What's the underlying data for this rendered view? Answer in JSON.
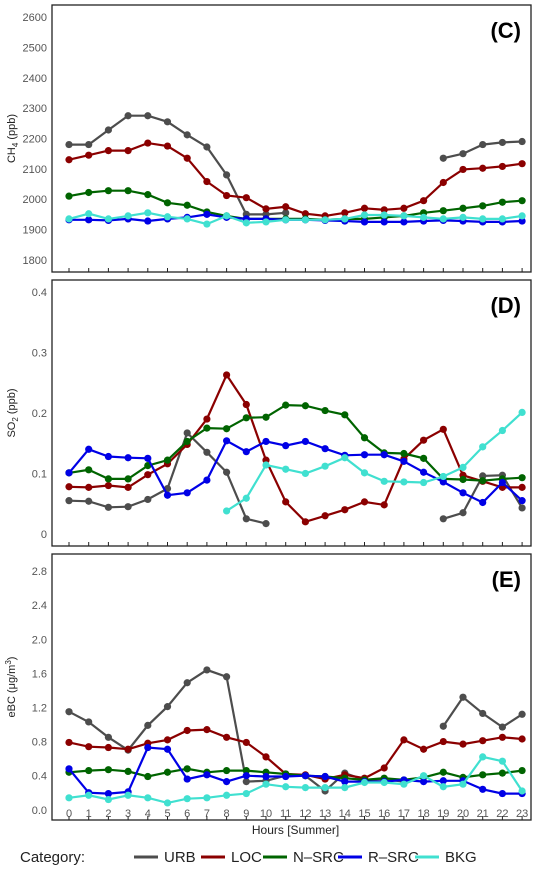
{
  "chart_data": [
    {
      "type": "line",
      "panel_label": "(C)",
      "ylabel": "CH4 (ppb)",
      "ylabel_main": "CH",
      "ylabel_sub": "4",
      "ylabel_rest": " (ppb)",
      "ylim": [
        1760,
        2640
      ],
      "yticks": [
        1800,
        1900,
        2000,
        2100,
        2200,
        2300,
        2400,
        2500,
        2600
      ],
      "x": [
        0,
        1,
        2,
        3,
        4,
        5,
        6,
        7,
        8,
        9,
        10,
        11,
        12,
        13,
        14,
        15,
        16,
        17,
        18,
        19,
        20,
        21,
        22,
        23
      ],
      "series": [
        {
          "name": "URB",
          "values": [
            2180,
            2180,
            2228,
            2275,
            2275,
            2255,
            2212,
            2172,
            2080,
            1950,
            1950,
            1955,
            null,
            null,
            null,
            null,
            null,
            null,
            null,
            2135,
            2150,
            2180,
            2187,
            2190
          ]
        },
        {
          "name": "LOC",
          "values": [
            2130,
            2145,
            2160,
            2160,
            2185,
            2175,
            2135,
            2058,
            2012,
            2005,
            1968,
            1975,
            1952,
            1945,
            1955,
            1970,
            1965,
            1970,
            1995,
            2055,
            2098,
            2102,
            2108,
            2117
          ]
        },
        {
          "name": "N–SRC",
          "values": [
            2010,
            2022,
            2028,
            2028,
            2015,
            1988,
            1980,
            1958,
            1945,
            1935,
            1935,
            1935,
            1935,
            1932,
            1935,
            1935,
            1940,
            1945,
            1955,
            1962,
            1970,
            1978,
            1990,
            1995
          ]
        },
        {
          "name": "R–SRC",
          "values": [
            1932,
            1932,
            1930,
            1935,
            1928,
            1935,
            1940,
            1950,
            1940,
            1935,
            1935,
            1932,
            1932,
            1930,
            1928,
            1925,
            1925,
            1925,
            1928,
            1930,
            1928,
            1925,
            1925,
            1928
          ]
        },
        {
          "name": "BKG",
          "values": [
            1935,
            1952,
            1935,
            1945,
            1955,
            1942,
            1935,
            1918,
            1945,
            1922,
            1925,
            1932,
            1932,
            1932,
            1935,
            1948,
            1948,
            1945,
            1940,
            1935,
            1940,
            1935,
            1935,
            1945
          ]
        }
      ]
    },
    {
      "type": "line",
      "panel_label": "(D)",
      "ylabel": "SO2 (ppb)",
      "ylabel_main": "SO",
      "ylabel_sub": "2",
      "ylabel_rest": " (ppb)",
      "ylim": [
        -0.02,
        0.42
      ],
      "yticks": [
        0.0,
        0.1,
        0.2,
        0.3,
        0.4
      ],
      "x": [
        0,
        1,
        2,
        3,
        4,
        5,
        6,
        7,
        8,
        9,
        10,
        11,
        12,
        13,
        14,
        15,
        16,
        17,
        18,
        19,
        20,
        21,
        22,
        23
      ],
      "series": [
        {
          "name": "URB",
          "values": [
            0.055,
            0.054,
            0.044,
            0.045,
            0.057,
            0.075,
            0.167,
            0.135,
            0.102,
            0.025,
            0.017,
            null,
            null,
            null,
            null,
            null,
            null,
            null,
            null,
            0.025,
            0.035,
            0.096,
            0.097,
            0.043
          ]
        },
        {
          "name": "LOC",
          "values": [
            0.078,
            0.077,
            0.08,
            0.077,
            0.098,
            0.116,
            0.148,
            0.19,
            0.263,
            0.214,
            0.122,
            0.053,
            0.02,
            0.03,
            0.04,
            0.053,
            0.048,
            0.124,
            0.155,
            0.173,
            0.097,
            0.087,
            0.077,
            0.077
          ]
        },
        {
          "name": "N–SRC",
          "values": [
            0.101,
            0.106,
            0.091,
            0.091,
            0.113,
            0.122,
            0.153,
            0.175,
            0.174,
            0.192,
            0.193,
            0.213,
            0.212,
            0.204,
            0.197,
            0.159,
            0.134,
            0.133,
            0.125,
            0.091,
            0.09,
            0.088,
            0.091,
            0.093
          ]
        },
        {
          "name": "R–SRC",
          "values": [
            0.101,
            0.14,
            0.128,
            0.126,
            0.125,
            0.064,
            0.068,
            0.089,
            0.154,
            0.136,
            0.153,
            0.146,
            0.153,
            0.141,
            0.13,
            0.131,
            0.131,
            0.12,
            0.102,
            0.086,
            0.068,
            0.052,
            0.085,
            0.055
          ]
        },
        {
          "name": "BKG",
          "values": [
            null,
            null,
            null,
            null,
            null,
            null,
            null,
            null,
            0.038,
            0.059,
            0.114,
            0.107,
            0.1,
            0.112,
            0.126,
            0.101,
            0.087,
            0.086,
            0.085,
            0.095,
            0.11,
            0.144,
            0.171,
            0.201
          ]
        }
      ]
    },
    {
      "type": "line",
      "panel_label": "(E)",
      "ylabel": "eBC (μg/m3)",
      "ylabel_main": "eBC (μg/m",
      "ylabel_sub": "3",
      "ylabel_rest": ")",
      "ylim": [
        -0.12,
        3.0
      ],
      "yticks": [
        0.0,
        0.4,
        0.8,
        1.2,
        1.6,
        2.0,
        2.4,
        2.8
      ],
      "ytick_labels": [
        "0.0",
        "0.4",
        "0.8",
        "1.2",
        "1.6",
        "2.0",
        "2.4",
        "2.8"
      ],
      "x": [
        0,
        1,
        2,
        3,
        4,
        5,
        6,
        7,
        8,
        9,
        10,
        11,
        12,
        13,
        14,
        15,
        16,
        17,
        18,
        19,
        20,
        21,
        22,
        23
      ],
      "xlabel": "Hours [Summer]",
      "series": [
        {
          "name": "URB",
          "values": [
            1.15,
            1.03,
            0.85,
            0.7,
            0.99,
            1.21,
            1.49,
            1.64,
            1.56,
            0.33,
            0.34,
            0.4,
            0.4,
            0.22,
            0.43,
            0.35,
            0.36,
            0.33,
            null,
            0.98,
            1.32,
            1.13,
            0.97,
            1.12
          ]
        },
        {
          "name": "LOC",
          "values": [
            0.79,
            0.74,
            0.73,
            0.71,
            0.78,
            0.82,
            0.93,
            0.94,
            0.85,
            0.79,
            0.62,
            0.42,
            0.41,
            0.36,
            0.41,
            0.37,
            0.49,
            0.82,
            0.71,
            0.8,
            0.77,
            0.81,
            0.85,
            0.83
          ]
        },
        {
          "name": "N–SRC",
          "values": [
            0.44,
            0.46,
            0.47,
            0.45,
            0.39,
            0.44,
            0.48,
            0.44,
            0.46,
            0.46,
            0.44,
            0.42,
            0.4,
            0.39,
            0.37,
            0.35,
            0.37,
            0.35,
            0.38,
            0.44,
            0.38,
            0.41,
            0.43,
            0.46
          ]
        },
        {
          "name": "R–SRC",
          "values": [
            0.48,
            0.2,
            0.19,
            0.21,
            0.73,
            0.71,
            0.36,
            0.41,
            0.33,
            0.4,
            0.39,
            0.39,
            0.4,
            0.39,
            0.33,
            0.33,
            0.33,
            0.35,
            0.33,
            0.34,
            0.34,
            0.24,
            0.19,
            0.19
          ]
        },
        {
          "name": "BKG",
          "values": [
            0.14,
            0.17,
            0.12,
            0.17,
            0.14,
            0.08,
            0.13,
            0.14,
            0.17,
            0.19,
            0.3,
            0.27,
            0.26,
            0.26,
            0.26,
            0.32,
            0.32,
            0.3,
            0.4,
            0.27,
            0.3,
            0.62,
            0.57,
            0.22
          ]
        }
      ]
    }
  ],
  "legend": {
    "title": "Category:",
    "items": [
      {
        "name": "URB",
        "color": "#4d4d4d"
      },
      {
        "name": "LOC",
        "color": "#8b0000"
      },
      {
        "name": "N–SRC",
        "color": "#006400"
      },
      {
        "name": "R–SRC",
        "color": "#0000e6"
      },
      {
        "name": "BKG",
        "color": "#40e0d0"
      }
    ]
  },
  "colors": {
    "URB": "#4d4d4d",
    "LOC": "#8b0000",
    "N–SRC": "#006400",
    "R–SRC": "#0000e6",
    "BKG": "#40e0d0"
  }
}
